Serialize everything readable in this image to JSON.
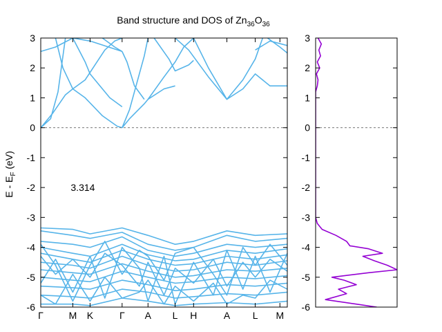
{
  "chart_data": [
    {
      "type": "line",
      "panel": "band-structure",
      "title_prefix": "Band structure and DOS of Zn",
      "title_sub1": "36",
      "title_mid": "O",
      "title_sub2": "36",
      "ylabel_prefix": "E - E",
      "ylabel_sub": "F",
      "ylabel_suffix": " (eV)",
      "ylim": [
        -6,
        3
      ],
      "yticks": [
        "-6",
        "-5",
        "-4",
        "-3",
        "-2",
        "-1",
        "0",
        "1",
        "2",
        "3"
      ],
      "xlim": [
        0,
        1
      ],
      "x_ticks": [
        {
          "label": "Γ",
          "x": 0.0
        },
        {
          "label": "M",
          "x": 0.13
        },
        {
          "label": "K",
          "x": 0.2
        },
        {
          "label": "Γ",
          "x": 0.33
        },
        {
          "label": "A",
          "x": 0.435
        },
        {
          "label": "L",
          "x": 0.545
        },
        {
          "label": "H",
          "x": 0.62
        },
        {
          "label": "A",
          "x": 0.755
        },
        {
          "label": "L",
          "x": 0.87
        },
        {
          "label": "M",
          "x": 0.97
        }
      ],
      "annotation": "3.314",
      "annotation_pos": {
        "x": 0.2,
        "y": -2.0
      },
      "fermi_level": 0,
      "band_color": "#56b4e9",
      "series": [
        {
          "x": [
            0,
            0.06,
            0.13,
            0.2,
            0.33
          ],
          "values": [
            2.55,
            2.7,
            3.0,
            2.9,
            2.55
          ]
        },
        {
          "x": [
            0,
            0.04,
            0.07,
            0.1
          ],
          "values": [
            0.0,
            0.3,
            1.2,
            3.0
          ]
        },
        {
          "x": [
            0.06,
            0.09,
            0.13,
            0.18,
            0.25,
            0.31,
            0.33
          ],
          "values": [
            3.0,
            2.0,
            1.3,
            1.0,
            0.4,
            0.05,
            0.0
          ]
        },
        {
          "x": [
            0,
            0.05,
            0.1,
            0.13,
            0.18,
            0.22,
            0.26,
            0.3,
            0.33
          ],
          "values": [
            0.0,
            0.5,
            1.1,
            1.3,
            1.6,
            2.1,
            2.6,
            2.9,
            3.0
          ]
        },
        {
          "x": [
            0.13,
            0.18,
            0.2,
            0.28,
            0.33
          ],
          "values": [
            3.0,
            2.2,
            1.8,
            1.0,
            0.7
          ]
        },
        {
          "x": [
            0.33,
            0.36,
            0.42,
            0.435,
            0.5,
            0.545
          ],
          "values": [
            0.0,
            0.3,
            0.8,
            0.95,
            1.3,
            1.4
          ]
        },
        {
          "x": [
            0.33,
            0.36,
            0.39,
            0.42,
            0.435
          ],
          "values": [
            0.0,
            0.6,
            1.5,
            2.4,
            3.0
          ]
        },
        {
          "x": [
            0.33,
            0.35,
            0.38,
            0.42
          ],
          "values": [
            2.55,
            2.2,
            1.4,
            0.95
          ]
        },
        {
          "x": [
            0.25,
            0.3,
            0.33
          ],
          "values": [
            3.0,
            2.7,
            2.55
          ]
        },
        {
          "x": [
            0.435,
            0.5,
            0.545,
            0.58,
            0.62
          ],
          "values": [
            0.95,
            1.7,
            2.2,
            2.7,
            3.0
          ]
        },
        {
          "x": [
            0.46,
            0.52,
            0.545,
            0.6,
            0.62
          ],
          "values": [
            3.0,
            2.3,
            1.9,
            2.1,
            2.25
          ]
        },
        {
          "x": [
            0.545,
            0.6,
            0.68,
            0.755
          ],
          "values": [
            3.0,
            2.6,
            1.7,
            0.95
          ]
        },
        {
          "x": [
            0.62,
            0.68,
            0.755,
            0.82,
            0.87,
            0.9
          ],
          "values": [
            3.0,
            2.0,
            0.95,
            1.6,
            2.3,
            3.0
          ]
        },
        {
          "x": [
            0.755,
            0.82,
            0.87,
            0.93,
            1.0
          ],
          "values": [
            0.95,
            1.3,
            1.8,
            1.4,
            1.4
          ]
        },
        {
          "x": [
            0.87,
            0.93,
            1.0
          ],
          "values": [
            2.6,
            2.9,
            2.75
          ]
        },
        {
          "x": [
            0.92,
            0.97,
            1.0
          ],
          "values": [
            3.0,
            2.7,
            2.5
          ]
        },
        {
          "x": [
            0,
            0.13,
            0.2,
            0.33,
            0.435,
            0.545,
            0.62,
            0.755,
            0.87,
            1.0
          ],
          "values": [
            -3.35,
            -3.4,
            -3.55,
            -3.35,
            -3.6,
            -3.9,
            -3.8,
            -3.45,
            -3.6,
            -3.55
          ]
        },
        {
          "x": [
            0,
            0.13,
            0.2,
            0.33,
            0.435,
            0.545,
            0.62,
            0.755,
            0.87,
            1.0
          ],
          "values": [
            -3.45,
            -3.6,
            -3.7,
            -3.5,
            -3.9,
            -4.1,
            -4.0,
            -3.6,
            -3.8,
            -3.7
          ]
        },
        {
          "x": [
            0,
            0.13,
            0.2,
            0.33,
            0.435,
            0.545,
            0.62,
            0.755,
            0.87,
            1.0
          ],
          "values": [
            -3.8,
            -3.9,
            -4.0,
            -3.65,
            -4.1,
            -4.3,
            -4.2,
            -3.9,
            -4.0,
            -3.9
          ]
        },
        {
          "x": [
            0,
            0.13,
            0.2,
            0.33,
            0.435,
            0.545,
            0.62,
            0.755,
            0.87,
            1.0
          ],
          "values": [
            -4.0,
            -4.2,
            -4.3,
            -3.9,
            -4.25,
            -4.45,
            -4.4,
            -4.1,
            -4.2,
            -4.05
          ]
        },
        {
          "x": [
            0,
            0.13,
            0.2,
            0.33,
            0.435,
            0.545,
            0.62,
            0.755,
            0.87,
            1.0
          ],
          "values": [
            -4.2,
            -4.4,
            -4.5,
            -4.1,
            -4.4,
            -4.6,
            -4.55,
            -4.3,
            -4.4,
            -4.25
          ]
        },
        {
          "x": [
            0,
            0.13,
            0.2,
            0.33,
            0.435,
            0.545,
            0.62,
            0.755,
            0.87,
            1.0
          ],
          "values": [
            -4.5,
            -4.6,
            -4.7,
            -4.3,
            -4.6,
            -4.8,
            -4.75,
            -4.5,
            -4.6,
            -4.45
          ]
        },
        {
          "x": [
            0,
            0.13,
            0.2,
            0.33,
            0.435,
            0.545,
            0.62,
            0.755,
            0.87,
            1.0
          ],
          "values": [
            -4.75,
            -4.85,
            -4.9,
            -4.55,
            -4.8,
            -5.0,
            -4.95,
            -4.75,
            -4.8,
            -4.7
          ]
        },
        {
          "x": [
            0,
            0.13,
            0.2,
            0.33,
            0.435,
            0.545,
            0.62,
            0.755,
            0.87,
            1.0
          ],
          "values": [
            -5.0,
            -5.1,
            -5.15,
            -4.8,
            -5.0,
            -5.2,
            -5.15,
            -5.0,
            -5.05,
            -4.95
          ]
        },
        {
          "x": [
            0,
            0.13,
            0.2,
            0.33,
            0.435,
            0.545,
            0.62,
            0.755,
            0.87,
            1.0
          ],
          "values": [
            -5.3,
            -5.35,
            -5.4,
            -5.1,
            -5.25,
            -5.45,
            -5.4,
            -5.25,
            -5.3,
            -5.2
          ]
        },
        {
          "x": [
            0,
            0.13,
            0.2,
            0.33,
            0.435,
            0.545,
            0.62,
            0.755,
            0.87,
            1.0
          ],
          "values": [
            -5.6,
            -5.65,
            -5.7,
            -5.4,
            -5.5,
            -5.7,
            -5.65,
            -5.55,
            -5.6,
            -5.5
          ]
        },
        {
          "x": [
            0,
            0.13,
            0.2,
            0.33,
            0.435,
            0.545,
            0.62,
            0.755,
            0.87,
            1.0
          ],
          "values": [
            -5.9,
            -5.9,
            -5.95,
            -5.7,
            -5.8,
            -5.95,
            -5.9,
            -5.85,
            -5.9,
            -5.8
          ]
        },
        {
          "x": [
            0,
            0.06,
            0.13,
            0.2,
            0.26,
            0.33,
            0.4,
            0.435,
            0.5,
            0.545,
            0.62,
            0.7,
            0.755,
            0.82,
            0.87,
            0.93,
            1.0
          ],
          "values": [
            -4.3,
            -4.9,
            -4.4,
            -5.0,
            -4.2,
            -4.6,
            -5.3,
            -4.5,
            -5.6,
            -4.7,
            -5.2,
            -4.4,
            -5.3,
            -4.5,
            -5.0,
            -4.4,
            -4.8
          ]
        },
        {
          "x": [
            0,
            0.06,
            0.13,
            0.2,
            0.26,
            0.33,
            0.4,
            0.435,
            0.5,
            0.545,
            0.62,
            0.7,
            0.755,
            0.82,
            0.87,
            0.93,
            1.0
          ],
          "values": [
            -5.2,
            -4.4,
            -5.5,
            -4.3,
            -5.7,
            -4.0,
            -4.7,
            -5.8,
            -4.3,
            -5.9,
            -4.5,
            -5.6,
            -4.1,
            -5.4,
            -4.3,
            -5.5,
            -4.2
          ]
        },
        {
          "x": [
            0,
            0.06,
            0.13,
            0.2,
            0.26,
            0.33,
            0.4,
            0.435,
            0.5,
            0.545,
            0.62,
            0.7,
            0.755,
            0.82,
            0.87,
            0.93,
            1.0
          ],
          "values": [
            -3.9,
            -4.6,
            -5.8,
            -4.6,
            -3.8,
            -4.9,
            -4.1,
            -4.3,
            -5.1,
            -4.2,
            -4.0,
            -4.9,
            -5.6,
            -4.0,
            -4.6,
            -3.9,
            -4.6
          ]
        },
        {
          "x": [
            0,
            0.06,
            0.13,
            0.2,
            0.26,
            0.33,
            0.4,
            0.435,
            0.5,
            0.545,
            0.62,
            0.7,
            0.755,
            0.82,
            0.87,
            0.93,
            1.0
          ],
          "values": [
            -5.6,
            -5.9,
            -4.9,
            -5.8,
            -5.0,
            -5.7,
            -5.5,
            -5.1,
            -5.9,
            -5.3,
            -5.8,
            -5.2,
            -5.9,
            -5.6,
            -5.7,
            -5.1,
            -5.4
          ]
        }
      ]
    },
    {
      "type": "line",
      "panel": "dos",
      "ylim": [
        -6,
        3
      ],
      "yticks": [
        "-6",
        "-5",
        "-4",
        "-3",
        "-2",
        "-1",
        "0",
        "1",
        "2",
        "3"
      ],
      "xlim": [
        0,
        1
      ],
      "fermi_level": 0,
      "dos_color": "#9400d3",
      "series": [
        {
          "x": [
            0.03,
            0.07,
            0.04,
            0.06,
            0.02,
            0.05,
            0.01,
            0.03,
            0.02,
            0.0,
            0.0,
            0.0,
            0.0,
            0.0,
            0.0,
            0.0,
            0.0,
            0.02,
            0.08,
            0.25,
            0.38,
            0.42,
            0.65,
            0.82,
            0.58,
            0.72,
            0.88,
            1.0,
            0.65,
            0.2,
            0.35,
            0.5,
            0.28,
            0.38,
            0.12,
            0.5,
            0.75
          ],
          "values": [
            3.0,
            2.8,
            2.6,
            2.4,
            2.2,
            2.0,
            1.8,
            1.6,
            1.4,
            1.2,
            1.0,
            0.5,
            0.0,
            -1.0,
            -2.0,
            -2.5,
            -3.0,
            -3.2,
            -3.4,
            -3.6,
            -3.8,
            -3.95,
            -4.05,
            -4.2,
            -4.3,
            -4.45,
            -4.6,
            -4.75,
            -4.85,
            -5.0,
            -5.1,
            -5.25,
            -5.4,
            -5.55,
            -5.75,
            -5.9,
            -6.0
          ]
        }
      ]
    }
  ]
}
